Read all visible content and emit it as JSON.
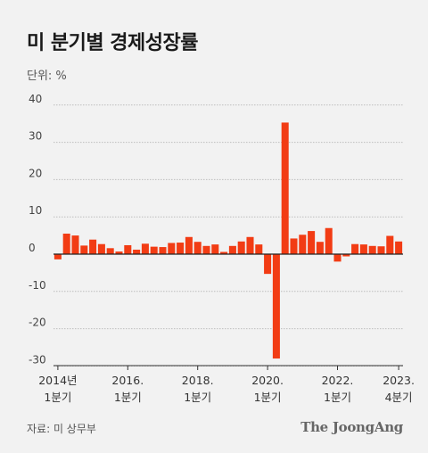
{
  "title": "미 분기별 경제성장률",
  "unit_label": "단위: %",
  "source": "자료: 미 상무부",
  "brand": "The JoongAng",
  "colors": {
    "bar": "#f23c14",
    "grid": "#bdbdbd",
    "background": "#f2f2f2"
  },
  "chart_data": {
    "type": "bar",
    "title": "미 분기별 경제성장률",
    "ylabel": "단위: %",
    "ylim": [
      -30,
      40
    ],
    "yticks": [
      40,
      30,
      20,
      10,
      0,
      -10,
      -20,
      -30
    ],
    "grid": true,
    "categories": [
      "2014 Q1",
      "2014 Q2",
      "2014 Q3",
      "2014 Q4",
      "2015 Q1",
      "2015 Q2",
      "2015 Q3",
      "2015 Q4",
      "2016 Q1",
      "2016 Q2",
      "2016 Q3",
      "2016 Q4",
      "2017 Q1",
      "2017 Q2",
      "2017 Q3",
      "2017 Q4",
      "2018 Q1",
      "2018 Q2",
      "2018 Q3",
      "2018 Q4",
      "2019 Q1",
      "2019 Q2",
      "2019 Q3",
      "2019 Q4",
      "2020 Q1",
      "2020 Q2",
      "2020 Q3",
      "2020 Q4",
      "2021 Q1",
      "2021 Q2",
      "2021 Q3",
      "2021 Q4",
      "2022 Q1",
      "2022 Q2",
      "2022 Q3",
      "2022 Q4",
      "2023 Q1",
      "2023 Q2",
      "2023 Q3",
      "2023 Q4"
    ],
    "values": [
      -1.4,
      5.5,
      5.0,
      2.3,
      3.9,
      2.7,
      1.6,
      0.7,
      2.4,
      1.2,
      2.8,
      2.0,
      1.9,
      3.0,
      3.1,
      4.6,
      3.3,
      2.2,
      2.6,
      0.6,
      2.2,
      3.4,
      4.6,
      2.6,
      -5.3,
      -28.0,
      35.3,
      4.2,
      5.2,
      6.2,
      3.3,
      7.0,
      -2.0,
      -0.6,
      2.7,
      2.6,
      2.2,
      2.1,
      4.9,
      3.4
    ],
    "x_tick_labels": [
      {
        "line1": "2014년",
        "line2": "1분기",
        "index": 0
      },
      {
        "line1": "2016.",
        "line2": "1분기",
        "index": 8
      },
      {
        "line1": "2018.",
        "line2": "1분기",
        "index": 16
      },
      {
        "line1": "2020.",
        "line2": "1분기",
        "index": 24
      },
      {
        "line1": "2022.",
        "line2": "1분기",
        "index": 32
      },
      {
        "line1": "2023.",
        "line2": "4분기",
        "index": 39
      }
    ]
  }
}
